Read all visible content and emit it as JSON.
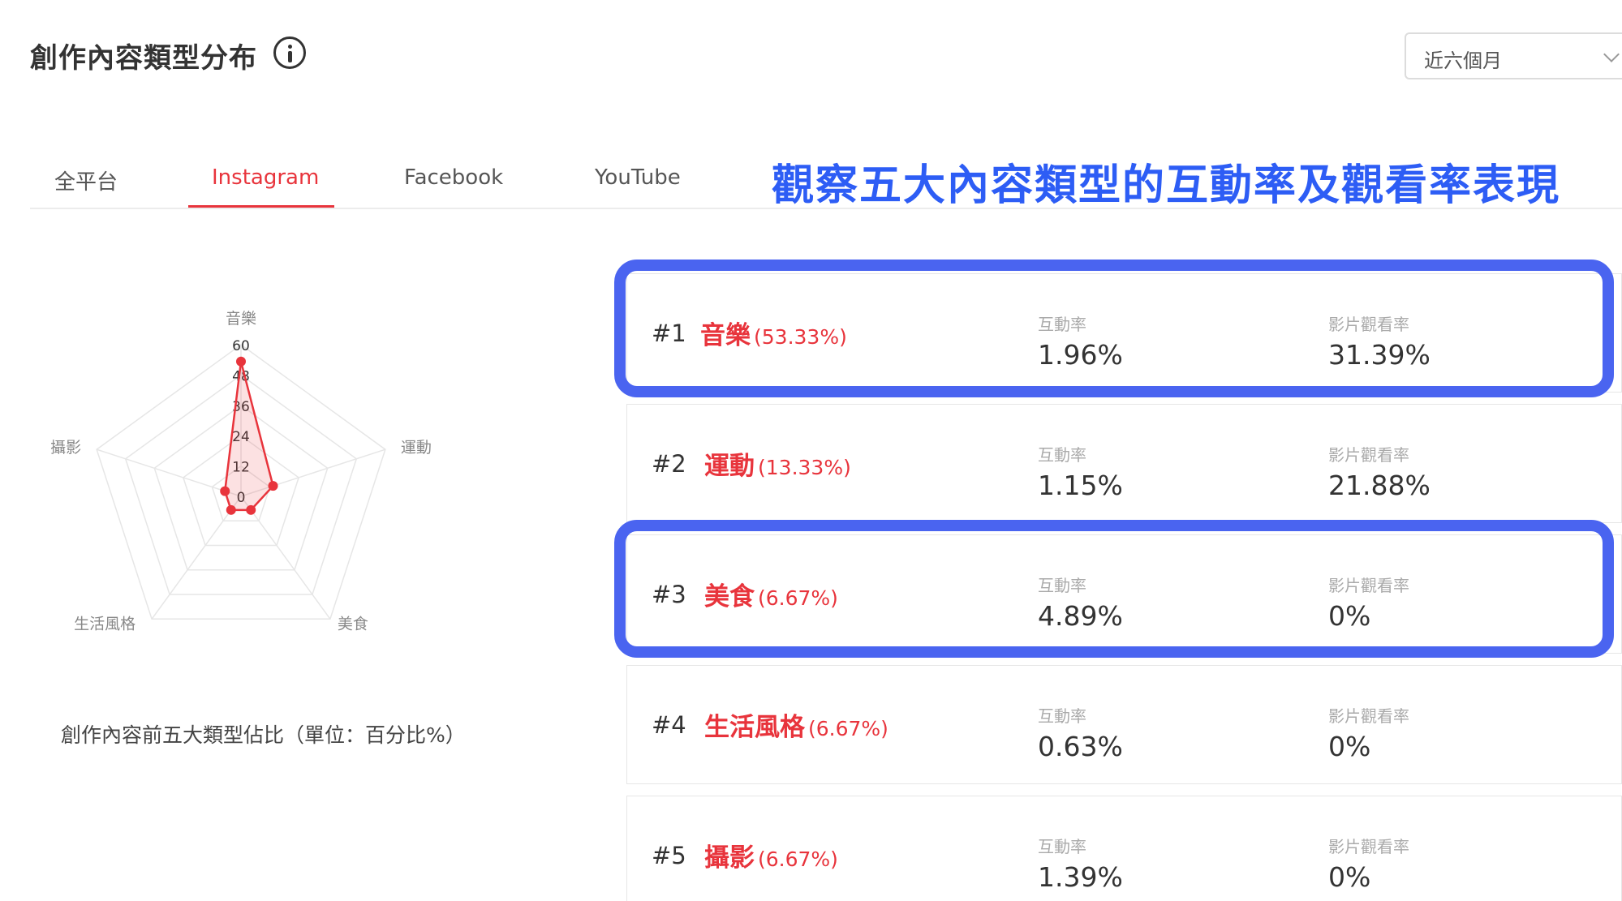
{
  "header": {
    "title": "創作內容類型分布",
    "period": "近六個月"
  },
  "tabs": [
    {
      "label": "全平台",
      "active": false
    },
    {
      "label": "Instagram",
      "active": true
    },
    {
      "label": "Facebook",
      "active": false
    },
    {
      "label": "YouTube",
      "active": false
    }
  ],
  "headline": "觀察五大內容類型的互動率及觀看率表現",
  "radar": {
    "caption": "創作內容前五大類型佔比（單位：百分比%）",
    "axes": [
      "音樂",
      "運動",
      "美食",
      "生活風格",
      "攝影"
    ],
    "ticks": [
      "0",
      "12",
      "24",
      "36",
      "48",
      "60"
    ],
    "max": 60,
    "values": [
      53.33,
      13.33,
      6.67,
      6.67,
      6.67
    ],
    "line_color": "#e8343c"
  },
  "metric_labels": {
    "engagement": "互動率",
    "view_rate": "影片觀看率"
  },
  "categories": [
    {
      "rank": "#1",
      "name": "音樂",
      "pct": "(53.33%)",
      "engagement": "1.96%",
      "view_rate": "31.39%",
      "highlighted": true
    },
    {
      "rank": "#2",
      "name": "運動",
      "pct": "(13.33%)",
      "engagement": "1.15%",
      "view_rate": "21.88%",
      "highlighted": false
    },
    {
      "rank": "#3",
      "name": "美食",
      "pct": "(6.67%)",
      "engagement": "4.89%",
      "view_rate": "0%",
      "highlighted": true
    },
    {
      "rank": "#4",
      "name": "生活風格",
      "pct": "(6.67%)",
      "engagement": "0.63%",
      "view_rate": "0%",
      "highlighted": false
    },
    {
      "rank": "#5",
      "name": "攝影",
      "pct": "(6.67%)",
      "engagement": "1.39%",
      "view_rate": "0%",
      "highlighted": false
    }
  ],
  "colors": {
    "accent": "#e8343c",
    "highlight": "#4a64f0",
    "headline": "#2d5df5"
  }
}
